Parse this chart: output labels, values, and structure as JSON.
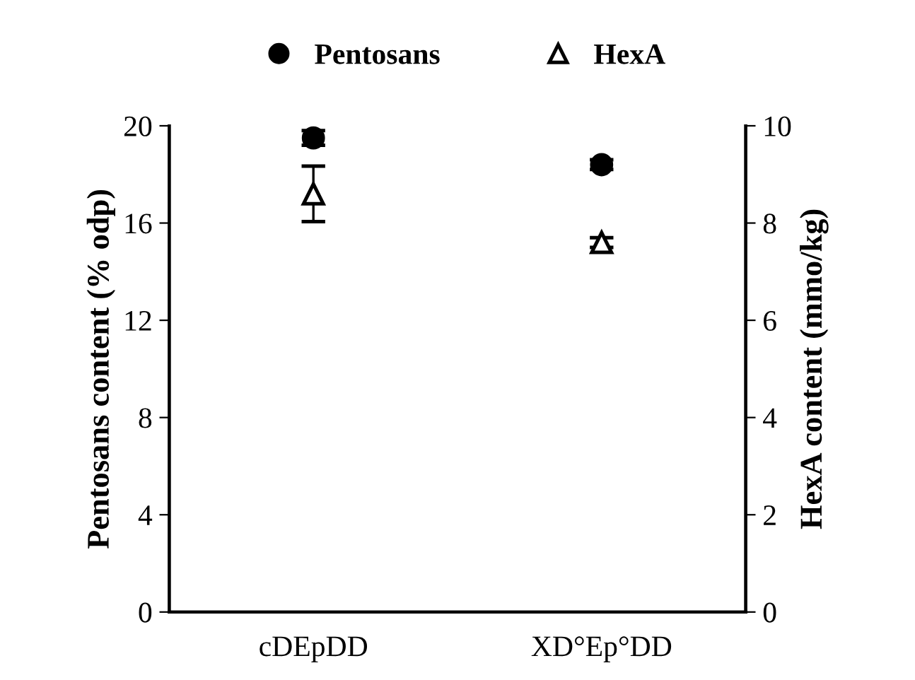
{
  "chart_data": {
    "type": "scatter",
    "categories": [
      "cDEpDD",
      "XD°Ep°DD"
    ],
    "ylabel": "Pentosans content (% odp)",
    "y2label": "HexA content (mmo/kg)",
    "ylim": [
      0,
      20
    ],
    "yticks": [
      0,
      4,
      8,
      12,
      16,
      20
    ],
    "y2lim": [
      0,
      10
    ],
    "y2ticks": [
      0,
      2,
      4,
      6,
      8,
      10
    ],
    "legend": "top",
    "grid": false,
    "series": [
      {
        "name": "Pentosans",
        "color": "#000000",
        "marker": "circle",
        "values": [
          19.5,
          18.4
        ],
        "errors": [
          0.3,
          0.2
        ]
      },
      {
        "name": "HexA",
        "color": "#ffffff",
        "marker": "triangle",
        "axis": "y2",
        "values": [
          8.6,
          7.6
        ],
        "errors": [
          0.57,
          0.1
        ]
      }
    ]
  }
}
